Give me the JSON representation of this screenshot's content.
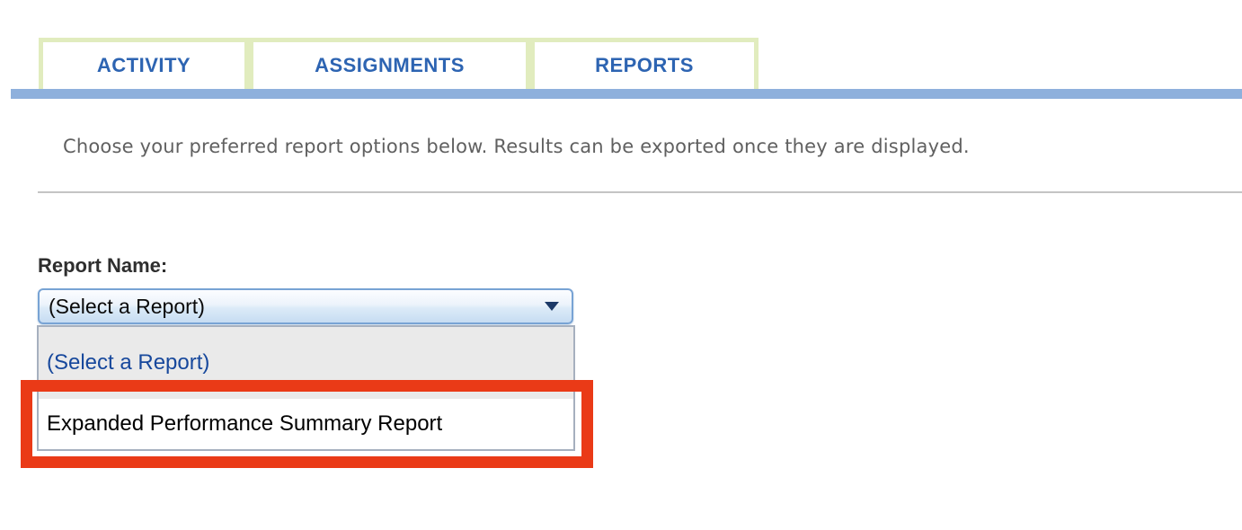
{
  "tabs": {
    "items": [
      {
        "label": "ACTIVITY"
      },
      {
        "label": "ASSIGNMENTS"
      },
      {
        "label": "REPORTS"
      }
    ]
  },
  "main": {
    "instructions": "Choose your preferred report options below. Results can be exported once they are displayed."
  },
  "report_form": {
    "label": "Report Name:",
    "select": {
      "value": "(Select a Report)",
      "arrow_icon": "triangle-down"
    },
    "listbox": {
      "options": [
        {
          "label": "(Select a Report)",
          "highlighted": false
        },
        {
          "label": "Expanded Performance Summary Report",
          "highlighted": true
        }
      ]
    }
  },
  "annotation": {
    "type": "highlight-rectangle",
    "target": "Expanded Performance Summary Report"
  },
  "colors": {
    "tab_text": "#2d64b2",
    "tab_border": "#e1ecbe",
    "accent_bar": "#8eb0dc",
    "instructions_text": "#606060",
    "divider": "#c4c4c4",
    "select_border": "#78a3d4",
    "listbox_border": "#a6b0bf",
    "option1_bg": "#eaeaea",
    "option_blue_text": "#17489c",
    "highlight_red": "#ea3a17",
    "arrow_navy": "#1c3a68"
  }
}
